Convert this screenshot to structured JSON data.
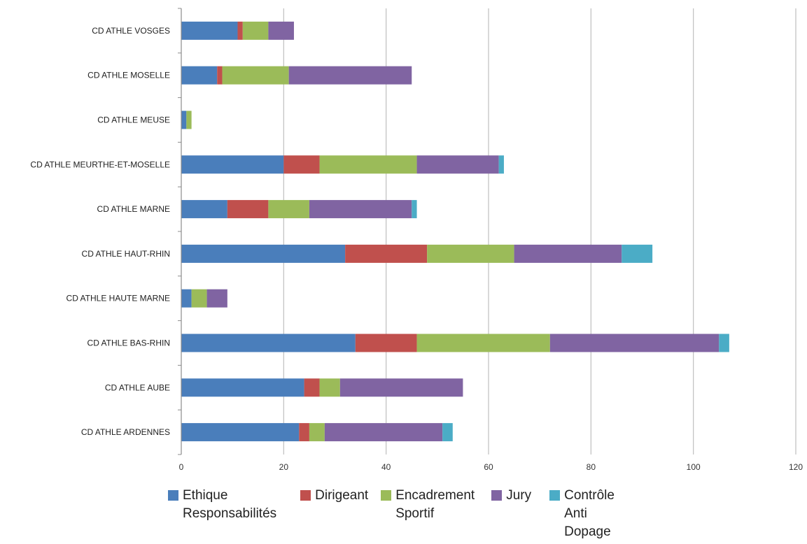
{
  "chart_data": {
    "type": "bar",
    "orientation": "horizontal",
    "stacked": true,
    "categories": [
      "CD ATHLE VOSGES",
      "CD ATHLE MOSELLE",
      "CD ATHLE MEUSE",
      "CD ATHLE MEURTHE-ET-MOSELLE",
      "CD ATHLE MARNE",
      "CD ATHLE HAUT-RHIN",
      "CD ATHLE HAUTE MARNE",
      "CD ATHLE BAS-RHIN",
      "CD ATHLE AUBE",
      "CD ATHLE ARDENNES"
    ],
    "series": [
      {
        "name": "Ethique Responsabilités",
        "color": "#4a7ebb",
        "values": [
          11,
          7,
          1,
          20,
          9,
          32,
          2,
          34,
          24,
          23
        ]
      },
      {
        "name": "Dirigeant",
        "color": "#c0504d",
        "values": [
          1,
          1,
          0,
          7,
          8,
          16,
          0,
          12,
          3,
          2
        ]
      },
      {
        "name": "Encadrement Sportif",
        "color": "#9bbb59",
        "values": [
          5,
          13,
          1,
          19,
          8,
          17,
          3,
          26,
          4,
          3
        ]
      },
      {
        "name": "Jury",
        "color": "#8064a2",
        "values": [
          5,
          24,
          0,
          16,
          20,
          21,
          4,
          33,
          24,
          23
        ]
      },
      {
        "name": "Contrôle Anti Dopage",
        "color": "#4bacc6",
        "values": [
          0,
          0,
          0,
          1,
          1,
          6,
          0,
          2,
          0,
          2
        ]
      }
    ],
    "xlim": [
      0,
      120
    ],
    "xticks": [
      0,
      20,
      40,
      60,
      80,
      100,
      120
    ],
    "grid": "vertical",
    "legend_position": "bottom",
    "legend_labels": [
      [
        "Ethique",
        "Responsabilités"
      ],
      [
        "Dirigeant"
      ],
      [
        "Encadrement",
        "Sportif"
      ],
      [
        "Jury"
      ],
      [
        "Contrôle",
        "Anti",
        "Dopage"
      ]
    ]
  }
}
